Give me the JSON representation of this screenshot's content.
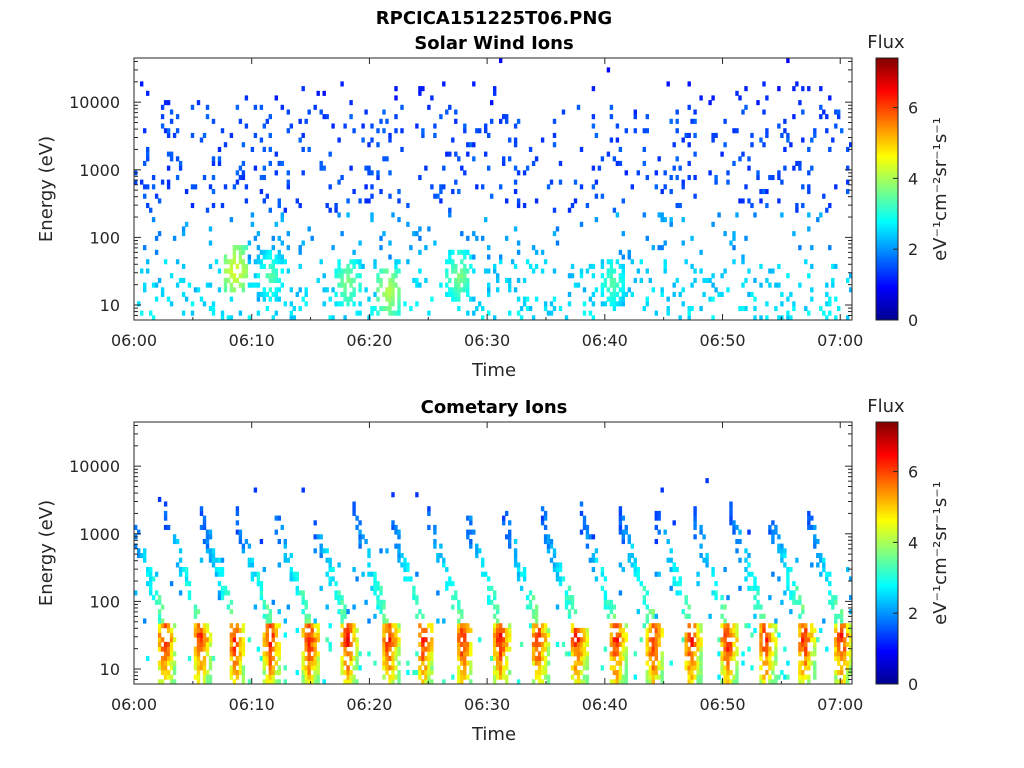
{
  "figure_title": "RPCICA151225T06.PNG",
  "colorbar": {
    "title": "Flux",
    "units": "eV⁻¹cm⁻²sr⁻¹s⁻¹",
    "ticks": [
      "0",
      "2",
      "4",
      "6"
    ],
    "range": [
      0,
      7.4
    ],
    "colormap": "jet"
  },
  "chart_data": [
    {
      "type": "heatmap",
      "title": "Solar Wind Ions",
      "xlabel": "Time",
      "ylabel": "Energy (eV)",
      "xlim": [
        "06:00",
        "07:01"
      ],
      "xticks": [
        "06:00",
        "06:10",
        "06:20",
        "06:30",
        "06:40",
        "06:50",
        "07:00"
      ],
      "yscale": "log",
      "ylim": [
        6,
        45000
      ],
      "yticks": [
        "10",
        "100",
        "1000",
        "10000"
      ],
      "description": "sparse scattered flux; flux 1-2 at 100-10000 eV, 2-3 below 100 eV, yellow patch near 06:08 at ~30 eV",
      "hotspots": [
        {
          "time_min": 8.5,
          "energy_eV": 30,
          "flux": 4.5
        },
        {
          "time_min": 11.5,
          "energy_eV": 25,
          "flux": 3.5
        },
        {
          "time_min": 18,
          "energy_eV": 20,
          "flux": 3.8
        },
        {
          "time_min": 21.5,
          "energy_eV": 15,
          "flux": 4.2
        },
        {
          "time_min": 27.5,
          "energy_eV": 25,
          "flux": 3.8
        },
        {
          "time_min": 40.5,
          "energy_eV": 20,
          "flux": 3.5
        }
      ]
    },
    {
      "type": "heatmap",
      "title": "Cometary Ions",
      "xlabel": "Time",
      "ylabel": "Energy (eV)",
      "xlim": [
        "06:00",
        "07:01"
      ],
      "xticks": [
        "06:00",
        "06:10",
        "06:20",
        "06:30",
        "06:40",
        "06:50",
        "07:00"
      ],
      "yscale": "log",
      "ylim": [
        6,
        45000
      ],
      "yticks": [
        "10",
        "100",
        "1000",
        "10000"
      ],
      "description": "periodic bursts every ~3 min with peak flux 5-6.5 at 10-40 eV, dispersed tails up to ~1000 eV",
      "bursts_min": [
        2.5,
        5.5,
        8.5,
        11.5,
        14.8,
        18,
        21.5,
        24.5,
        27.8,
        31,
        34.2,
        37.5,
        40.8,
        44,
        47.2,
        50.3,
        53.5,
        56.8,
        60
      ]
    }
  ]
}
